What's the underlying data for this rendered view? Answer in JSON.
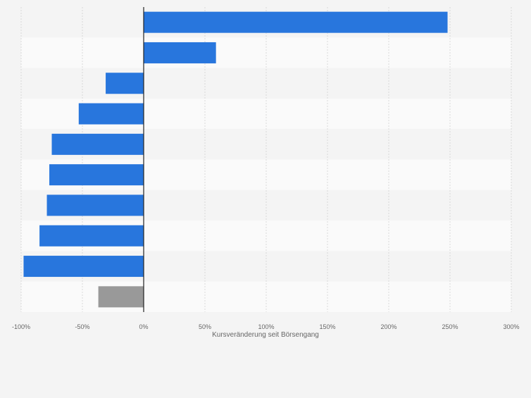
{
  "chart_data": {
    "type": "bar",
    "orientation": "horizontal",
    "categories": [
      "",
      "",
      "",
      "",
      "",
      "",
      "",
      "",
      "",
      ""
    ],
    "values": [
      248,
      59,
      -31,
      -53,
      -75,
      -77,
      -79,
      -85,
      -98,
      -37
    ],
    "bar_colors": [
      "#2876dd",
      "#2876dd",
      "#2876dd",
      "#2876dd",
      "#2876dd",
      "#2876dd",
      "#2876dd",
      "#2876dd",
      "#2876dd",
      "#999999"
    ],
    "xlim": [
      -100,
      300
    ],
    "x_ticks": [
      -100,
      -50,
      0,
      50,
      100,
      150,
      200,
      250,
      300
    ],
    "x_tick_labels": [
      "-100%",
      "-50%",
      "0%",
      "50%",
      "100%",
      "150%",
      "200%",
      "250%",
      "300%"
    ],
    "xlabel": "Kursveränderung seit Börsengang",
    "ylabel": "",
    "title": "",
    "grid": "vertical dashed",
    "legend": "none"
  },
  "colors": {
    "background": "#f4f4f4",
    "band_light": "#fafafa",
    "band_dark": "#f4f4f4",
    "bar": "#2876dd",
    "bar_highlight": "#999999",
    "grid": "#d9d9d9",
    "axis": "#222222",
    "tick_label": "#666666"
  }
}
